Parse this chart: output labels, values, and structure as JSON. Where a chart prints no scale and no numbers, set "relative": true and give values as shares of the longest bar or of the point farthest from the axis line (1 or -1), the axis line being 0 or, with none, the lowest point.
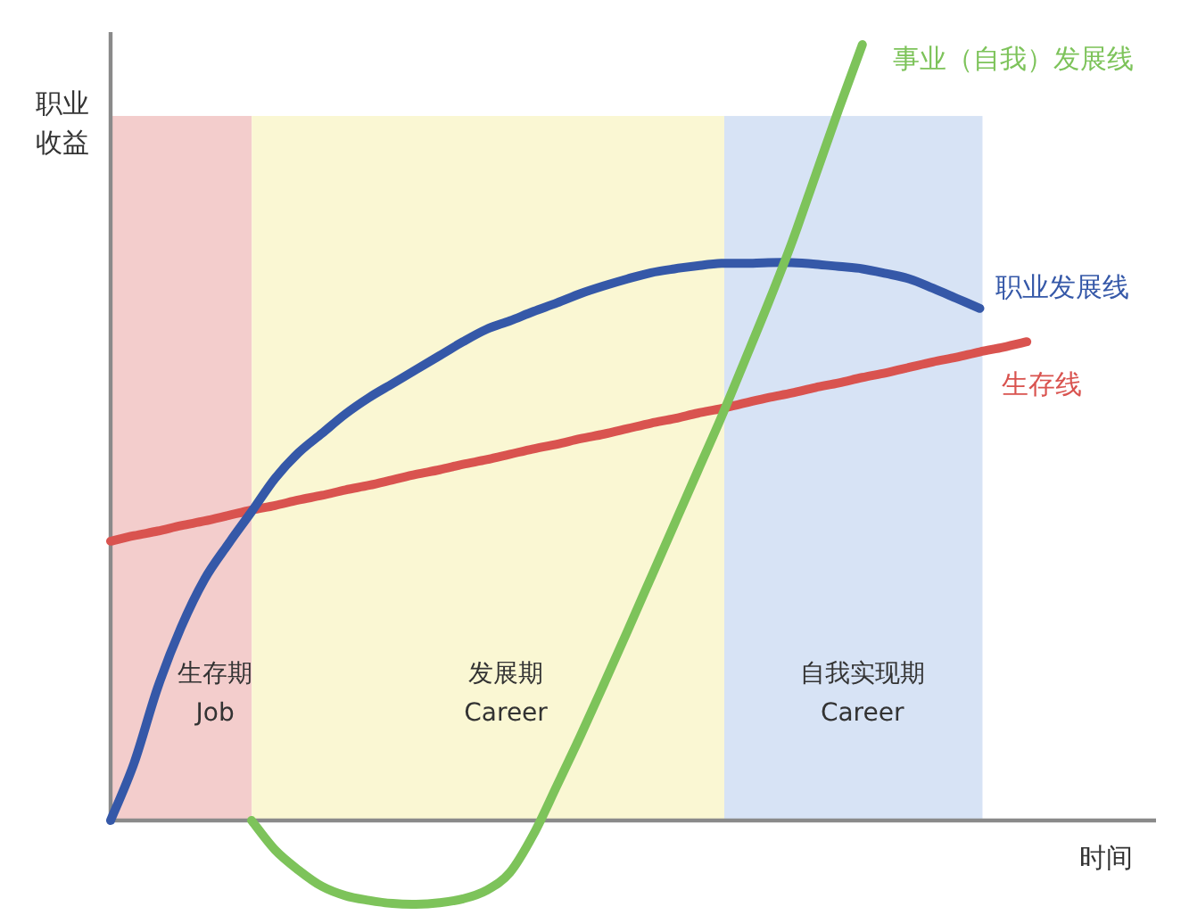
{
  "chart_data": {
    "type": "line",
    "relative": true,
    "xlabel": "时间",
    "ylabel": "职业收益",
    "line_style": "solid",
    "categories": [
      null,
      null,
      null,
      null,
      null,
      null,
      null,
      null,
      null,
      null,
      null,
      null,
      null,
      null,
      null,
      null,
      null,
      null,
      null,
      null,
      null,
      null,
      null,
      null,
      null,
      null,
      null,
      null,
      null,
      null,
      null,
      null,
      null,
      null,
      null,
      null,
      null,
      null,
      null,
      null,
      null,
      null,
      null,
      null,
      null
    ],
    "series": [
      {
        "name": "生存线",
        "color": "#d9534f",
        "values": [
          0.36,
          0.367,
          0.373,
          0.38,
          0.386,
          0.393,
          0.4,
          0.406,
          0.413,
          0.419,
          0.426,
          0.432,
          0.439,
          0.446,
          0.452,
          0.459,
          0.465,
          0.472,
          0.479,
          0.485,
          0.492,
          0.498,
          0.505,
          0.512,
          0.518,
          0.525,
          0.531,
          0.538,
          0.545,
          0.551,
          0.558,
          0.564,
          0.571,
          0.577,
          0.584,
          0.591,
          0.597,
          0.604,
          0.61,
          0.617,
          null,
          null,
          null,
          null,
          null
        ]
      },
      {
        "name": "职业发展线",
        "color": "#3558a8",
        "values": [
          0,
          0.074,
          0.171,
          0.249,
          0.311,
          0.356,
          0.398,
          0.441,
          0.474,
          0.499,
          0.524,
          0.545,
          0.563,
          0.581,
          0.599,
          0.617,
          0.633,
          0.644,
          0.656,
          0.667,
          0.679,
          0.689,
          0.698,
          0.706,
          0.711,
          0.715,
          0.718,
          0.718,
          0.719,
          0.719,
          0.717,
          0.714,
          0.711,
          0.705,
          0.698,
          0.686,
          0.673,
          0.66,
          null,
          null,
          null,
          null,
          null,
          null,
          null
        ]
      },
      {
        "name": "事业（自我）发展线",
        "color": "#7dc35a",
        "values": [
          null,
          null,
          null,
          null,
          null,
          null,
          0,
          -0.038,
          -0.064,
          -0.085,
          -0.097,
          -0.103,
          -0.107,
          -0.108,
          -0.106,
          -0.101,
          -0.09,
          -0.067,
          -0.018,
          0.045,
          0.109,
          0.176,
          0.244,
          0.313,
          0.382,
          0.451,
          0.52,
          0.593,
          0.667,
          0.745,
          0.831,
          0.917,
          1,
          null,
          null,
          null,
          null,
          null,
          null,
          null,
          null,
          null,
          null,
          null,
          null
        ]
      }
    ],
    "annotations": [
      "生存期\nJob",
      "发展期\nCareer",
      "自我实现期\nCareer"
    ]
  }
}
